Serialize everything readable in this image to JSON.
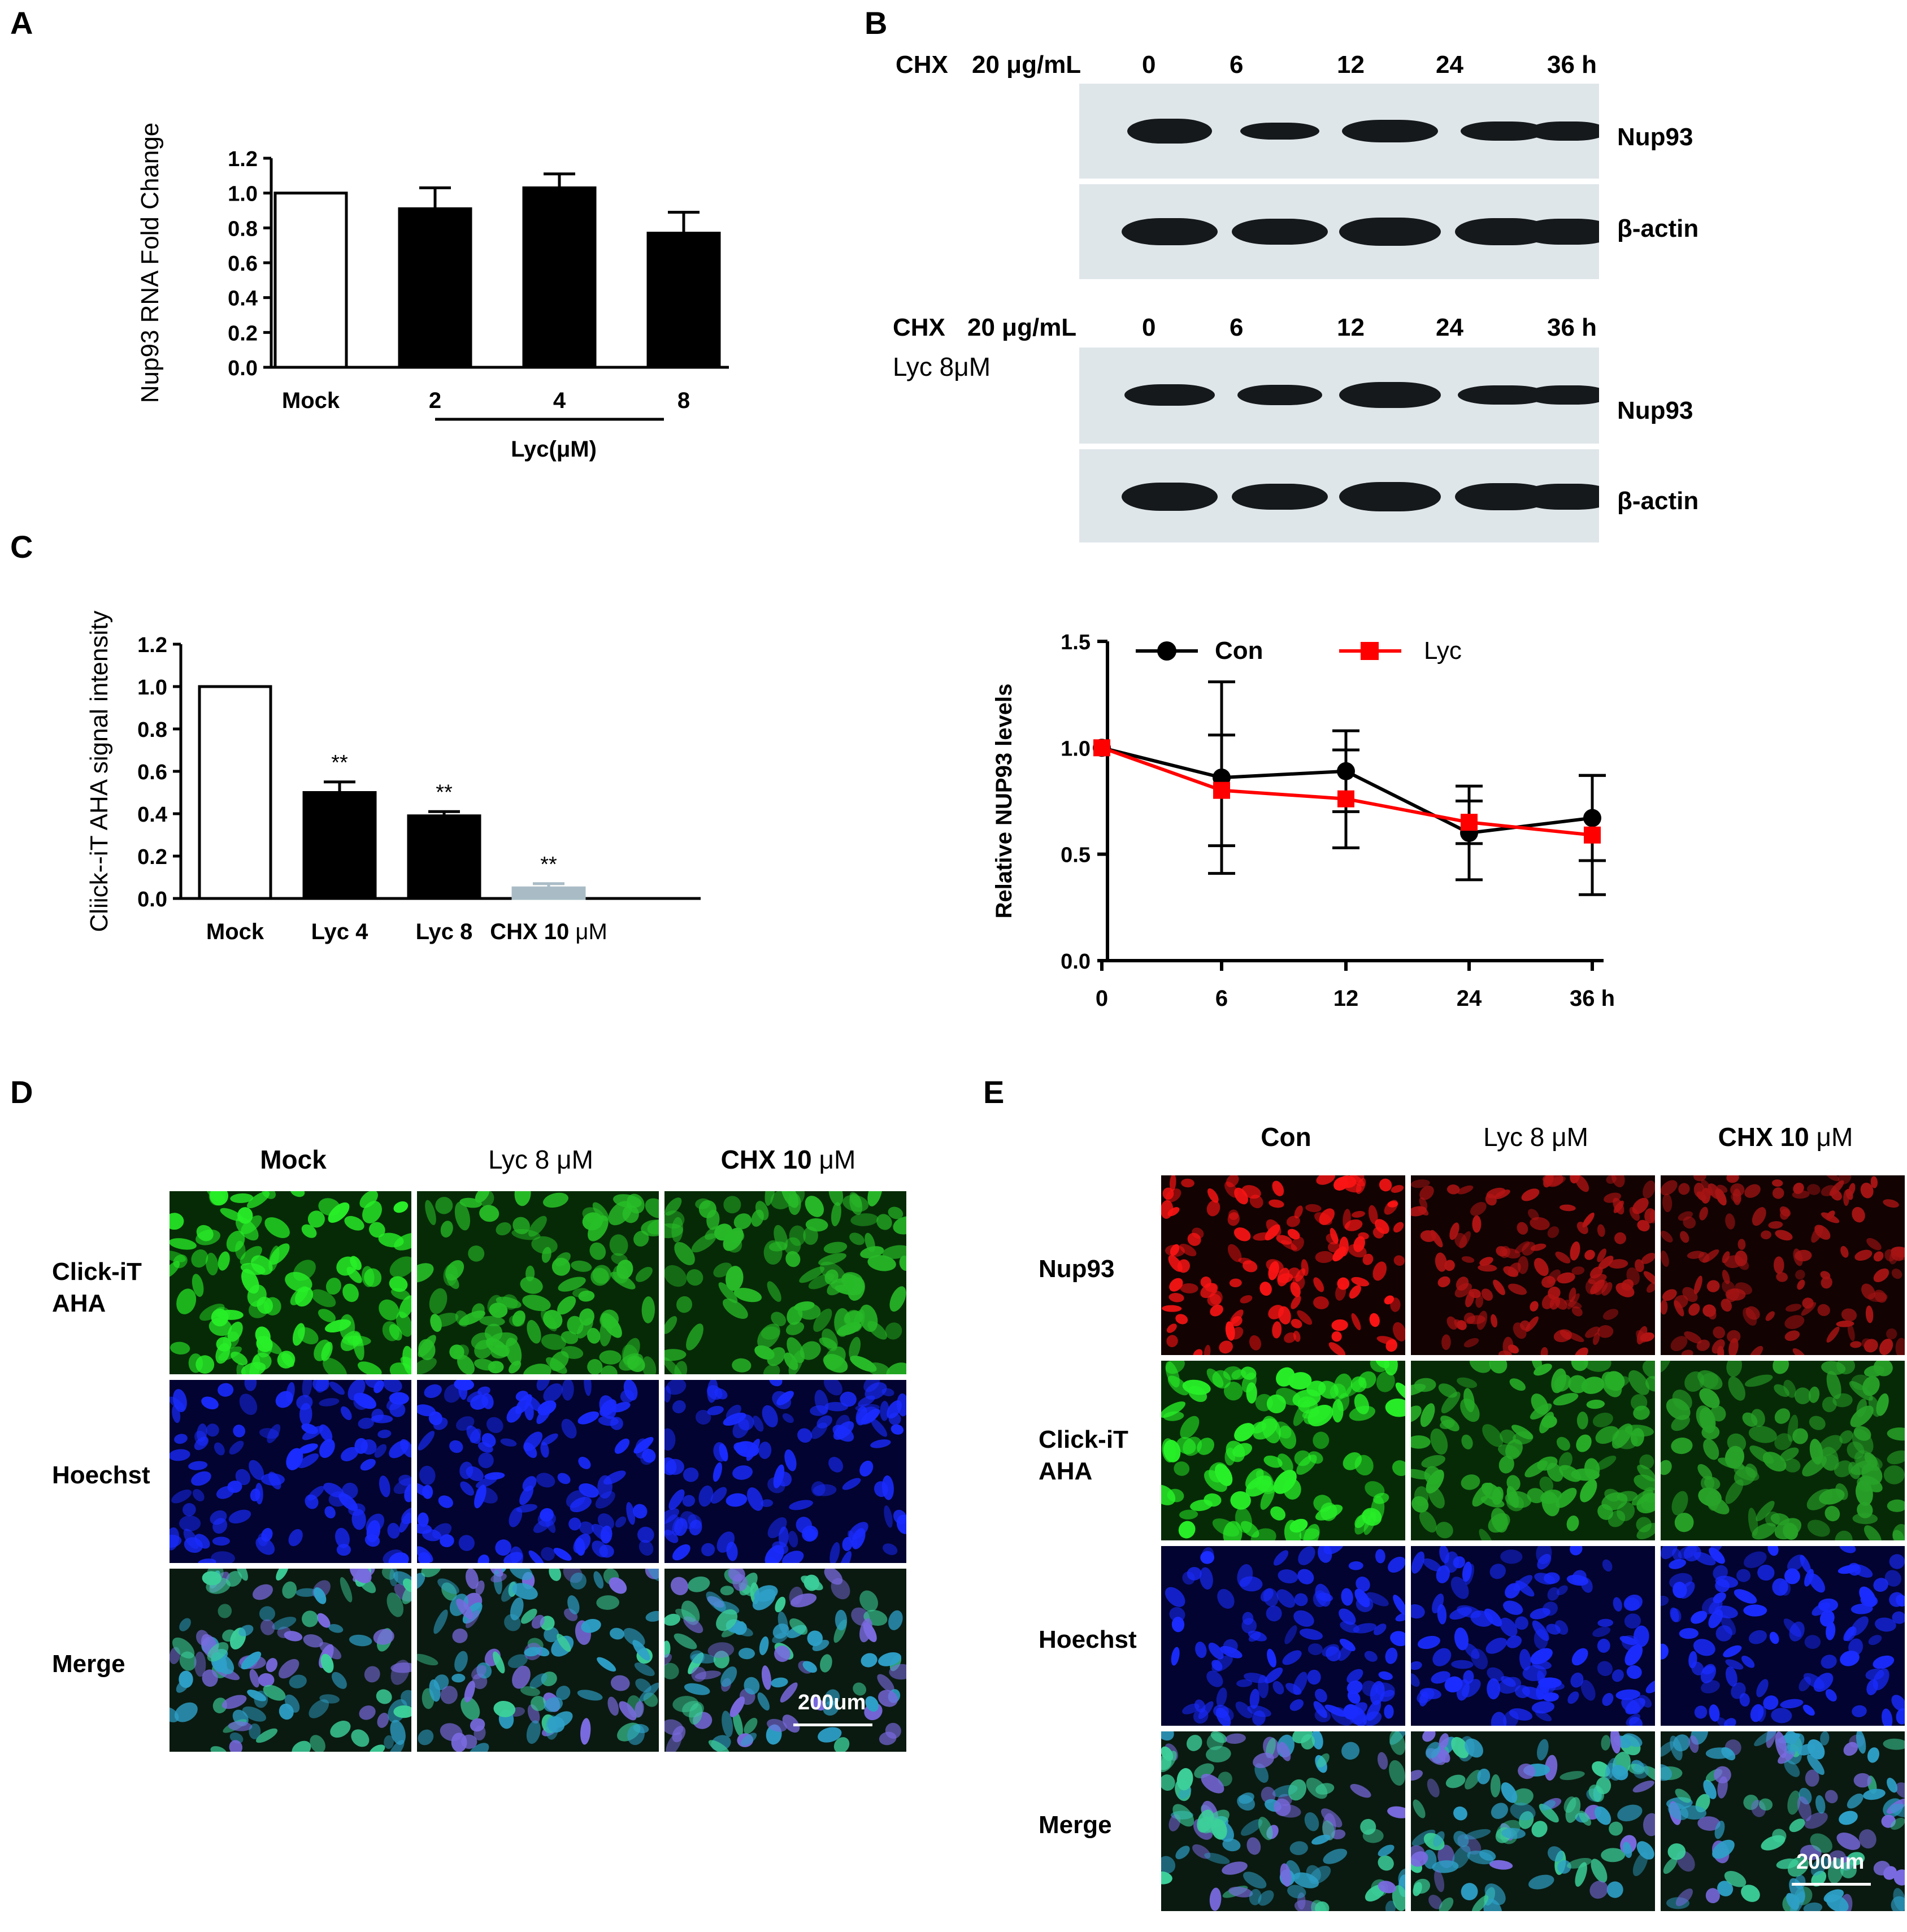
{
  "panels": {
    "A": {
      "letter": "A",
      "group_label": "Lyc(μM)",
      "chart_data": {
        "type": "bar",
        "categories": [
          "Mock",
          "2",
          "4",
          "8"
        ],
        "values": [
          1.0,
          0.91,
          1.03,
          0.77
        ],
        "errors": [
          0,
          0.12,
          0.08,
          0.12
        ],
        "fills": [
          "#ffffff",
          "#000000",
          "#000000",
          "#000000"
        ],
        "ylabel": "Nup93 RNA Fold Change",
        "ylim": [
          0,
          1.2
        ],
        "yticks": [
          "0.0",
          "0.2",
          "0.4",
          "0.6",
          "0.8",
          "1.0",
          "1.2"
        ]
      }
    },
    "B": {
      "letter": "B",
      "blot1": {
        "treatment": "CHX",
        "dose": "20  μg/mL",
        "lanes": [
          "0",
          "6",
          "12",
          "24",
          "36 h"
        ],
        "band_labels": [
          "Nup93",
          "β-actin"
        ]
      },
      "blot2": {
        "treatment": "CHX",
        "dose": "20  μg/mL",
        "extra": "Lyc 8μM",
        "lanes": [
          "0",
          "6",
          "12",
          "24",
          "36 h"
        ],
        "band_labels": [
          "Nup93",
          "β-actin"
        ]
      },
      "chart_data": {
        "type": "line",
        "x": [
          "0",
          "6",
          "12",
          "24",
          "36 h"
        ],
        "ylabel": "Relative  NUP93 levels",
        "ylim": [
          0,
          1.5
        ],
        "yticks": [
          "0.0",
          "0.5",
          "1.0",
          "1.5"
        ],
        "series": [
          {
            "name": "Con",
            "values": [
              1.0,
              0.86,
              0.89,
              0.6,
              0.67
            ],
            "err": [
              0,
              0.45,
              0.19,
              0.22,
              0.2
            ],
            "color": "#000000"
          },
          {
            "name": "Lyc",
            "values": [
              1.0,
              0.8,
              0.76,
              0.65,
              0.59
            ],
            "err": [
              0,
              0.26,
              0.23,
              0.1,
              0.28
            ],
            "color": "#ff0000"
          }
        ]
      }
    },
    "C": {
      "letter": "C",
      "chart_data": {
        "type": "bar",
        "categories": [
          "Mock",
          "Lyc 4",
          "Lyc 8",
          "CHX 10 μM"
        ],
        "values": [
          1.0,
          0.5,
          0.39,
          0.05
        ],
        "errors": [
          0,
          0.05,
          0.02,
          0.02
        ],
        "annotations": [
          "",
          "**",
          "**",
          "**"
        ],
        "fills": [
          "#ffffff",
          "#000000",
          "#000000",
          "#a9bcc6"
        ],
        "ylabel": "Cliick--iT AHA signal intensity",
        "ylim": [
          0,
          1.2
        ],
        "yticks": [
          "0.0",
          "0.2",
          "0.4",
          "0.6",
          "0.8",
          "1.0",
          "1.2"
        ]
      }
    },
    "D": {
      "letter": "D",
      "columns": [
        "Mock",
        "Lyc 8 μM",
        "CHX 10 μM"
      ],
      "rows": [
        "Click-iT\nAHA",
        "Hoechst",
        "Merge"
      ],
      "scale_bar": "200um"
    },
    "E": {
      "letter": "E",
      "columns": [
        "Con",
        "Lyc 8 μM",
        "CHX 10 μM"
      ],
      "rows": [
        "Nup93",
        "Click-iT\nAHA",
        "Hoechst",
        "Merge"
      ],
      "scale_bar": "200um"
    }
  }
}
